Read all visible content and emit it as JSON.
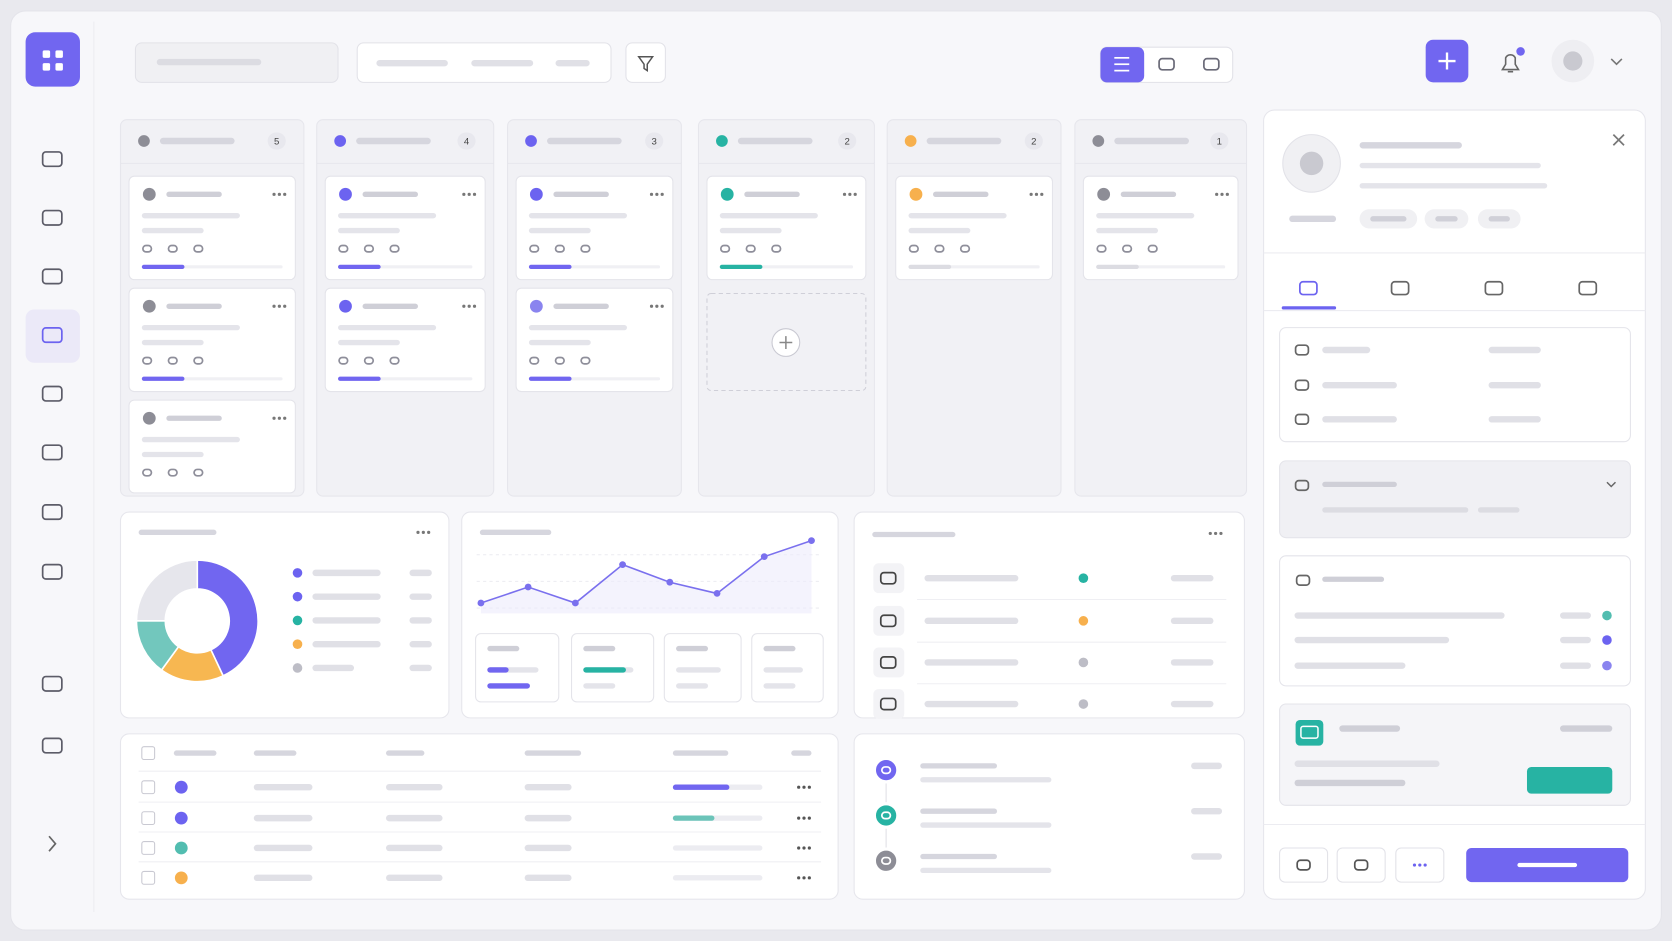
{
  "kanban": {
    "columns": [
      {
        "count": "5"
      },
      {
        "count": "4"
      },
      {
        "count": "3"
      },
      {
        "count": "2"
      },
      {
        "count": "2"
      },
      {
        "count": "1"
      }
    ]
  },
  "donut": {
    "values": [
      43,
      17,
      15,
      25
    ],
    "colors": [
      "#7166f0",
      "#f7b751",
      "#72c7bd",
      "#e6e6ec"
    ]
  },
  "trend": {
    "values": [
      13,
      33,
      13,
      61,
      39,
      25,
      71,
      91
    ],
    "ylim": [
      0,
      100
    ],
    "color": "#7a70ee"
  }
}
